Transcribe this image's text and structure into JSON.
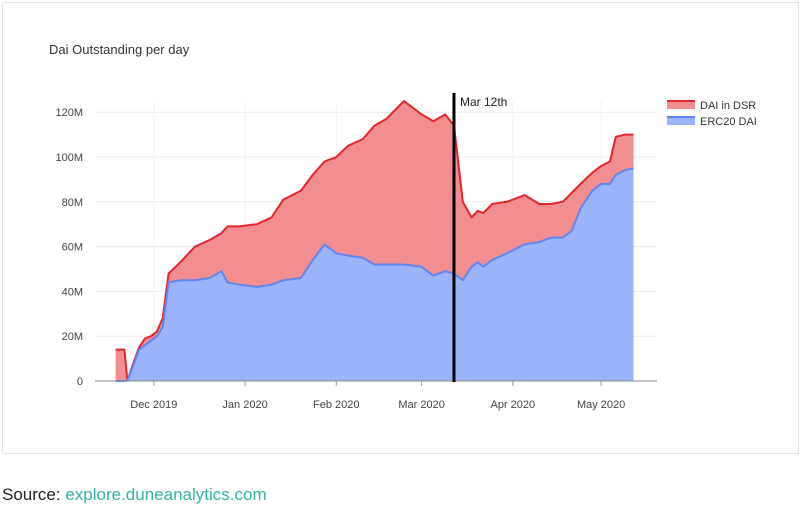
{
  "chart_data": {
    "type": "area",
    "title": "Dai Outstanding per day",
    "stacked": true,
    "y_axis": {
      "range": [
        0,
        125000000
      ],
      "ticks": [
        0,
        20000000,
        40000000,
        60000000,
        80000000,
        100000000,
        120000000
      ],
      "tick_labels": [
        "0",
        "20M",
        "40M",
        "60M",
        "80M",
        "100M",
        "120M"
      ],
      "grid": true
    },
    "x_axis": {
      "range": [
        "2019-11-11",
        "2020-05-20"
      ],
      "ticks": [
        "2019-12-01",
        "2020-01-01",
        "2020-02-01",
        "2020-03-01",
        "2020-04-01",
        "2020-05-01"
      ],
      "tick_labels": [
        "Dec 2019",
        "Jan 2020",
        "Feb 2020",
        "Mar 2020",
        "Apr 2020",
        "May 2020"
      ]
    },
    "legend": {
      "position": "top-right"
    },
    "annotation": {
      "x": "2020-03-12",
      "label": "Mar 12th",
      "color": "#000000"
    },
    "series": [
      {
        "name": "ERC20 DAI",
        "color": "#5f85f2",
        "fill": "#9ab3fb",
        "points": [
          [
            "2019-11-18",
            0
          ],
          [
            "2019-11-21",
            0
          ],
          [
            "2019-11-22",
            0.2
          ],
          [
            "2019-11-24",
            7
          ],
          [
            "2019-11-26",
            14
          ],
          [
            "2019-11-28",
            16
          ],
          [
            "2019-11-30",
            18
          ],
          [
            "2019-12-02",
            20
          ],
          [
            "2019-12-04",
            24
          ],
          [
            "2019-12-06",
            44
          ],
          [
            "2019-12-10",
            45
          ],
          [
            "2019-12-15",
            45
          ],
          [
            "2019-12-20",
            46
          ],
          [
            "2019-12-24",
            49
          ],
          [
            "2019-12-26",
            44
          ],
          [
            "2019-12-30",
            43
          ],
          [
            "2020-01-05",
            42
          ],
          [
            "2020-01-10",
            43
          ],
          [
            "2020-01-14",
            45
          ],
          [
            "2020-01-20",
            46
          ],
          [
            "2020-01-24",
            54
          ],
          [
            "2020-01-28",
            61
          ],
          [
            "2020-02-01",
            57
          ],
          [
            "2020-02-05",
            56
          ],
          [
            "2020-02-10",
            55
          ],
          [
            "2020-02-14",
            52
          ],
          [
            "2020-02-18",
            52
          ],
          [
            "2020-02-24",
            52
          ],
          [
            "2020-03-01",
            51
          ],
          [
            "2020-03-05",
            47
          ],
          [
            "2020-03-09",
            49
          ],
          [
            "2020-03-12",
            48
          ],
          [
            "2020-03-15",
            45
          ],
          [
            "2020-03-18",
            51
          ],
          [
            "2020-03-20",
            53
          ],
          [
            "2020-03-22",
            51
          ],
          [
            "2020-03-25",
            54
          ],
          [
            "2020-03-30",
            57
          ],
          [
            "2020-04-05",
            61
          ],
          [
            "2020-04-10",
            62
          ],
          [
            "2020-04-14",
            64
          ],
          [
            "2020-04-18",
            64
          ],
          [
            "2020-04-21",
            67
          ],
          [
            "2020-04-24",
            77
          ],
          [
            "2020-04-28",
            85
          ],
          [
            "2020-05-01",
            88
          ],
          [
            "2020-05-04",
            88
          ],
          [
            "2020-05-06",
            92
          ],
          [
            "2020-05-09",
            94
          ],
          [
            "2020-05-12",
            95
          ]
        ]
      },
      {
        "name": "DAI in DSR",
        "color": "#e2262b",
        "fill": "#f38e90",
        "points": [
          [
            "2019-11-18",
            14
          ],
          [
            "2019-11-21",
            14
          ],
          [
            "2019-11-22",
            0.2
          ],
          [
            "2019-11-24",
            8
          ],
          [
            "2019-11-26",
            15
          ],
          [
            "2019-11-28",
            19
          ],
          [
            "2019-11-30",
            20
          ],
          [
            "2019-12-02",
            22
          ],
          [
            "2019-12-04",
            28
          ],
          [
            "2019-12-06",
            48
          ],
          [
            "2019-12-10",
            53
          ],
          [
            "2019-12-15",
            60
          ],
          [
            "2019-12-20",
            63
          ],
          [
            "2019-12-24",
            66
          ],
          [
            "2019-12-26",
            69
          ],
          [
            "2019-12-30",
            69
          ],
          [
            "2020-01-05",
            70
          ],
          [
            "2020-01-10",
            73
          ],
          [
            "2020-01-14",
            81
          ],
          [
            "2020-01-20",
            85
          ],
          [
            "2020-01-24",
            92
          ],
          [
            "2020-01-28",
            98
          ],
          [
            "2020-02-01",
            100
          ],
          [
            "2020-02-05",
            105
          ],
          [
            "2020-02-10",
            108
          ],
          [
            "2020-02-14",
            114
          ],
          [
            "2020-02-18",
            117
          ],
          [
            "2020-02-24",
            125
          ],
          [
            "2020-03-01",
            119
          ],
          [
            "2020-03-05",
            116
          ],
          [
            "2020-03-09",
            119
          ],
          [
            "2020-03-12",
            114
          ],
          [
            "2020-03-15",
            80
          ],
          [
            "2020-03-18",
            73
          ],
          [
            "2020-03-20",
            76
          ],
          [
            "2020-03-22",
            75
          ],
          [
            "2020-03-25",
            79
          ],
          [
            "2020-03-30",
            80
          ],
          [
            "2020-04-05",
            83
          ],
          [
            "2020-04-10",
            79
          ],
          [
            "2020-04-14",
            79
          ],
          [
            "2020-04-18",
            80
          ],
          [
            "2020-04-21",
            84
          ],
          [
            "2020-04-24",
            88
          ],
          [
            "2020-04-28",
            93
          ],
          [
            "2020-05-01",
            96
          ],
          [
            "2020-05-04",
            98
          ],
          [
            "2020-05-06",
            109
          ],
          [
            "2020-05-09",
            110
          ],
          [
            "2020-05-12",
            110
          ]
        ]
      }
    ],
    "legend_order": [
      "DAI in DSR",
      "ERC20 DAI"
    ],
    "y_units": "millions"
  },
  "caption": {
    "label": "Source:",
    "link_text": "explore.duneanalytics.com"
  }
}
